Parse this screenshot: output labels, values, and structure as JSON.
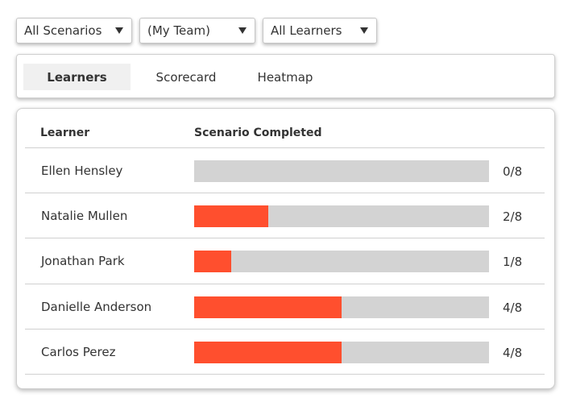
{
  "filters": {
    "scenarios": "All Scenarios",
    "team": "(My Team)",
    "learners": "All Learners"
  },
  "tabs": [
    {
      "label": "Learners",
      "active": true
    },
    {
      "label": "Scorecard",
      "active": false
    },
    {
      "label": "Heatmap",
      "active": false
    }
  ],
  "table": {
    "headers": {
      "learner": "Learner",
      "completed": "Scenario Completed"
    },
    "total": 8,
    "rows": [
      {
        "name": "Ellen Hensley",
        "completed": 0,
        "label": "0/8"
      },
      {
        "name": "Natalie Mullen",
        "completed": 2,
        "label": "2/8"
      },
      {
        "name": "Jonathan Park",
        "completed": 1,
        "label": "1/8"
      },
      {
        "name": "Danielle Anderson",
        "completed": 4,
        "label": "4/8"
      },
      {
        "name": "Carlos Perez",
        "completed": 4,
        "label": "4/8"
      }
    ]
  },
  "colors": {
    "progress_fill": "#ff4f2e",
    "progress_track": "#d3d3d3"
  },
  "icons": {
    "dropdown": "caret-down-icon"
  }
}
